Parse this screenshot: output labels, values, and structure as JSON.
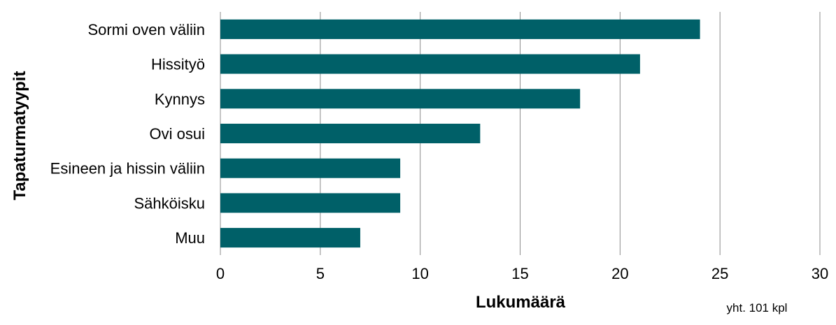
{
  "chart_data": {
    "type": "bar",
    "orientation": "horizontal",
    "categories": [
      "Sormi oven väliin",
      "Hissityö",
      "Kynnys",
      "Ovi osui",
      "Esineen ja hissin väliin",
      "Sähköisku",
      "Muu"
    ],
    "values": [
      24,
      21,
      18,
      13,
      9,
      9,
      7
    ],
    "xlabel": "Lukumäärä",
    "ylabel": "Tapaturmatyypit",
    "xlim": [
      0,
      30
    ],
    "xticks": [
      "0",
      "5",
      "10",
      "15",
      "20",
      "25",
      "30"
    ],
    "grid": true,
    "bar_color": "#006068",
    "note": "yht. 101 kpl"
  }
}
